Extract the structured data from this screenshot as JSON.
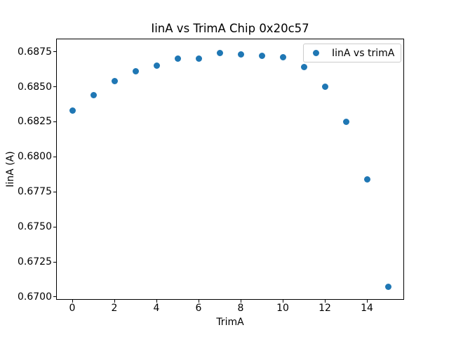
{
  "figure": {
    "background": "#ffffff"
  },
  "chart_data": {
    "type": "scatter",
    "title": "IinA vs TrimA Chip 0x20c57",
    "xlabel": "TrimA",
    "ylabel": "IinA (A)",
    "grid": false,
    "axis_color": "#000000",
    "text_color": "#000000",
    "marker_color": "#1f77b4",
    "marker_size_px": 9,
    "xlim": [
      -0.75,
      15.75
    ],
    "ylim": [
      0.66982,
      0.68841
    ],
    "xticks": {
      "values": [
        0,
        2,
        4,
        6,
        8,
        10,
        12,
        14
      ],
      "labels": [
        "0",
        "2",
        "4",
        "6",
        "8",
        "10",
        "12",
        "14"
      ]
    },
    "yticks": {
      "values": [
        0.67,
        0.6725,
        0.675,
        0.6775,
        0.68,
        0.6825,
        0.685,
        0.6875
      ],
      "labels": [
        "0.6700",
        "0.6725",
        "0.6750",
        "0.6775",
        "0.6800",
        "0.6825",
        "0.6850",
        "0.6875"
      ]
    },
    "series": [
      {
        "name": "IinA vs trimA",
        "marker_color": "#1f77b4",
        "x": [
          0,
          1,
          2,
          3,
          4,
          5,
          6,
          7,
          8,
          9,
          10,
          11,
          12,
          13,
          14,
          15
        ],
        "y": [
          0.6833,
          0.6844,
          0.6854,
          0.6861,
          0.6865,
          0.687,
          0.687,
          0.6874,
          0.6873,
          0.6872,
          0.6871,
          0.6864,
          0.685,
          0.6825,
          0.6784,
          0.6707
        ]
      }
    ],
    "legend": {
      "position": "upper right",
      "border_color": "#cccccc",
      "entries": [
        {
          "label": "IinA vs trimA",
          "marker_color": "#1f77b4"
        }
      ]
    }
  }
}
